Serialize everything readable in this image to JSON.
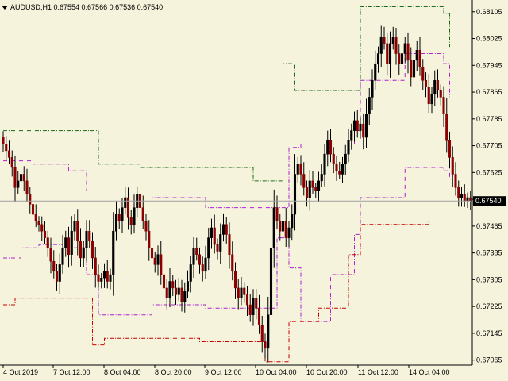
{
  "header": {
    "symbol_line": "AUDUSD,H1  0.67554 0.67566 0.67536 0.67540",
    "menu_icon": "triangle-down-icon"
  },
  "colors": {
    "background": "#f5f3dc",
    "axis": "#000000",
    "bull_body": "#000000",
    "bear_body": "#8b0000",
    "wick": "#000000",
    "outer_upper": "#1a6b1a",
    "outer_lower": "#cc0000",
    "inner_band": "#b020d0",
    "price_line": "#a0a0a0"
  },
  "chart_data": {
    "type": "candlestick",
    "symbol": "AUDUSD",
    "timeframe": "H1",
    "ohlc_header": {
      "open": 0.67554,
      "high": 0.67566,
      "low": 0.67536,
      "close": 0.6754
    },
    "current_price": 0.6754,
    "current_price_label": "0.67540",
    "ylim": [
      0.6705,
      0.6814
    ],
    "y_ticks": [
      "0.68105",
      "0.68025",
      "0.67945",
      "0.67865",
      "0.67785",
      "0.67705",
      "0.67625",
      "0.67545",
      "0.67465",
      "0.67385",
      "0.67305",
      "0.67225",
      "0.67145",
      "0.67065"
    ],
    "x_ticks": [
      "4 Oct 2019",
      "7 Oct 12:00",
      "8 Oct 04:00",
      "8 Oct 20:00",
      "9 Oct 12:00",
      "10 Oct 04:00",
      "10 Oct 20:00",
      "11 Oct 12:00",
      "14 Oct 04:00"
    ],
    "grid": false,
    "closes": [
      0.6771,
      0.6769,
      0.6767,
      0.6764,
      0.6758,
      0.676,
      0.6762,
      0.676,
      0.6756,
      0.6753,
      0.675,
      0.6748,
      0.6747,
      0.6745,
      0.6743,
      0.674,
      0.6736,
      0.6733,
      0.673,
      0.6735,
      0.674,
      0.6743,
      0.6738,
      0.6745,
      0.6748,
      0.6742,
      0.6737,
      0.674,
      0.6745,
      0.6742,
      0.6737,
      0.6732,
      0.673,
      0.6731,
      0.6733,
      0.673,
      0.6732,
      0.6745,
      0.675,
      0.6748,
      0.6752,
      0.6755,
      0.6749,
      0.6747,
      0.6752,
      0.6756,
      0.6752,
      0.6748,
      0.6745,
      0.674,
      0.6737,
      0.6735,
      0.6738,
      0.6732,
      0.6728,
      0.6725,
      0.673,
      0.6728,
      0.6726,
      0.6728,
      0.6724,
      0.6727,
      0.673,
      0.6735,
      0.674,
      0.6738,
      0.6735,
      0.6733,
      0.6737,
      0.6743,
      0.6746,
      0.6741,
      0.6739,
      0.6744,
      0.6747,
      0.6744,
      0.6738,
      0.6733,
      0.6728,
      0.6725,
      0.6728,
      0.6726,
      0.6723,
      0.672,
      0.6725,
      0.6722,
      0.6717,
      0.6712,
      0.671,
      0.672,
      0.674,
      0.6752,
      0.6748,
      0.6745,
      0.6748,
      0.6743,
      0.6746,
      0.675,
      0.6762,
      0.6765,
      0.6762,
      0.6758,
      0.6755,
      0.676,
      0.6758,
      0.6757,
      0.676,
      0.6762,
      0.6768,
      0.6772,
      0.6768,
      0.6765,
      0.6763,
      0.6762,
      0.6765,
      0.6768,
      0.6772,
      0.6775,
      0.6778,
      0.6775,
      0.6777,
      0.6773,
      0.678,
      0.6785,
      0.679,
      0.6795,
      0.6798,
      0.6803,
      0.6801,
      0.6795,
      0.6801,
      0.6803,
      0.6798,
      0.6795,
      0.6798,
      0.6801,
      0.6796,
      0.6791,
      0.6796,
      0.6799,
      0.6794,
      0.679,
      0.6788,
      0.6783,
      0.6786,
      0.679,
      0.6787,
      0.6785,
      0.678,
      0.6772,
      0.6767,
      0.6762,
      0.6758,
      0.6755,
      0.6756,
      0.6754,
      0.6755,
      0.6754
    ],
    "bands": {
      "outer_upper_steps": [
        [
          0,
          0.6775
        ],
        [
          26,
          0.6775
        ],
        [
          32,
          0.6765
        ],
        [
          46,
          0.6764
        ],
        [
          80,
          0.6764
        ],
        [
          84,
          0.676
        ],
        [
          92,
          0.676
        ],
        [
          94,
          0.6795
        ],
        [
          96,
          0.6795
        ],
        [
          98,
          0.6787
        ],
        [
          110,
          0.6787
        ],
        [
          113,
          0.6787
        ],
        [
          118,
          0.6787
        ],
        [
          120,
          0.6812
        ],
        [
          135,
          0.6812
        ],
        [
          143,
          0.6812
        ],
        [
          148,
          0.681
        ],
        [
          150,
          0.68
        ]
      ],
      "inner_upper_steps": [
        [
          0,
          0.6766
        ],
        [
          5,
          0.6766
        ],
        [
          10,
          0.6765
        ],
        [
          22,
          0.6763
        ],
        [
          28,
          0.6757
        ],
        [
          50,
          0.6755
        ],
        [
          68,
          0.6752
        ],
        [
          82,
          0.6752
        ],
        [
          92,
          0.6752
        ],
        [
          96,
          0.677
        ],
        [
          100,
          0.6771
        ],
        [
          110,
          0.6771
        ],
        [
          118,
          0.6775
        ],
        [
          120,
          0.679
        ],
        [
          135,
          0.6798
        ],
        [
          143,
          0.6798
        ],
        [
          148,
          0.6795
        ],
        [
          150,
          0.6785
        ]
      ],
      "inner_lower_steps": [
        [
          0,
          0.6737
        ],
        [
          6,
          0.674
        ],
        [
          12,
          0.6741
        ],
        [
          20,
          0.674
        ],
        [
          28,
          0.6732
        ],
        [
          32,
          0.672
        ],
        [
          50,
          0.6723
        ],
        [
          68,
          0.6722
        ],
        [
          82,
          0.6722
        ],
        [
          92,
          0.6743
        ],
        [
          96,
          0.6734
        ],
        [
          100,
          0.6718
        ],
        [
          110,
          0.6732
        ],
        [
          118,
          0.6744
        ],
        [
          120,
          0.6755
        ],
        [
          135,
          0.6764
        ],
        [
          143,
          0.6764
        ],
        [
          148,
          0.6763
        ],
        [
          150,
          0.676
        ]
      ],
      "outer_lower_steps": [
        [
          0,
          0.6723
        ],
        [
          4,
          0.6725
        ],
        [
          22,
          0.6725
        ],
        [
          30,
          0.6711
        ],
        [
          34,
          0.6713
        ],
        [
          52,
          0.6713
        ],
        [
          66,
          0.6712
        ],
        [
          88,
          0.6706
        ],
        [
          94,
          0.6706
        ],
        [
          96,
          0.6718
        ],
        [
          106,
          0.6722
        ],
        [
          116,
          0.6738
        ],
        [
          120,
          0.6747
        ],
        [
          135,
          0.6747
        ],
        [
          143,
          0.6748
        ],
        [
          150,
          0.6748
        ]
      ]
    }
  }
}
